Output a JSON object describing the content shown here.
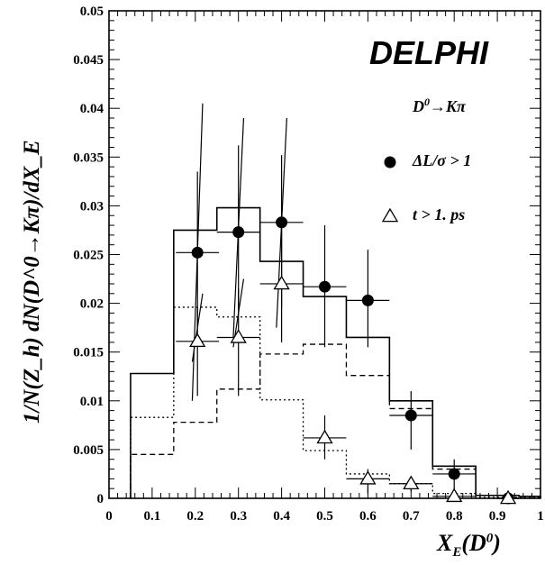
{
  "chart_data": {
    "type": "histogram",
    "xlim": [
      0,
      1
    ],
    "ylim": [
      0,
      0.05
    ],
    "x_ticks": [
      "0",
      "0.1",
      "0.2",
      "0.3",
      "0.4",
      "0.5",
      "0.6",
      "0.7",
      "0.8",
      "0.9",
      "1"
    ],
    "y_ticks": [
      "0",
      "0.005",
      "0.01",
      "0.015",
      "0.02",
      "0.025",
      "0.03",
      "0.035",
      "0.04",
      "0.045",
      "0.05"
    ],
    "ylabel": "1/N(Z_h) dN(D^0→Kπ)/dX_E",
    "xlabel": "X_E(D^0)",
    "bin_edges": [
      0.05,
      0.15,
      0.25,
      0.35,
      0.45,
      0.55,
      0.65,
      0.75,
      0.85,
      0.95,
      1.0
    ],
    "histograms": [
      {
        "style": "solid",
        "values": [
          0.0128,
          0.0275,
          0.0298,
          0.0243,
          0.0207,
          0.0165,
          0.01,
          0.0033,
          0.0003,
          0.0002
        ]
      },
      {
        "style": "dashed",
        "values": [
          0.0045,
          0.0078,
          0.0112,
          0.0148,
          0.0158,
          0.0126,
          0.0092,
          0.003,
          0.0003,
          0.0002
        ]
      },
      {
        "style": "dotted",
        "values": [
          0.0083,
          0.0196,
          0.0186,
          0.0101,
          0.0049,
          0.0025,
          0.0015,
          0.0005,
          0.0001,
          0.0001
        ]
      }
    ],
    "series": [
      {
        "name": "ΔL/σ > 1",
        "marker": "filled-circle",
        "points": [
          {
            "x": 0.205,
            "y": 0.0252,
            "xerr": 0.05,
            "ylow": 0.0175,
            "yhigh": 0.0335,
            "slant": [
              0.01,
              0.0405
            ]
          },
          {
            "x": 0.3,
            "y": 0.0273,
            "xerr": 0.05,
            "ylow": 0.0195,
            "yhigh": 0.0362,
            "slant": [
              0.0165,
              0.039
            ]
          },
          {
            "x": 0.4,
            "y": 0.0283,
            "xerr": 0.05,
            "ylow": 0.0195,
            "yhigh": 0.0352,
            "slant": [
              0.0175,
              0.039
            ]
          },
          {
            "x": 0.5,
            "y": 0.0217,
            "xerr": 0.05,
            "ylow": 0.0155,
            "yhigh": 0.028
          },
          {
            "x": 0.6,
            "y": 0.0203,
            "xerr": 0.05,
            "ylow": 0.0155,
            "yhigh": 0.0255
          },
          {
            "x": 0.7,
            "y": 0.0085,
            "xerr": 0.05,
            "ylow": 0.005,
            "yhigh": 0.011
          },
          {
            "x": 0.8,
            "y": 0.0025,
            "xerr": 0.05,
            "ylow": 0.0005,
            "yhigh": 0.004
          },
          {
            "x": 0.925,
            "y": 0.0,
            "xerr": 0.025,
            "ylow": 0.0,
            "yhigh": 0.0002
          }
        ]
      },
      {
        "name": "t > 1. ps",
        "marker": "open-triangle",
        "points": [
          {
            "x": 0.205,
            "y": 0.0161,
            "xerr": 0.05,
            "ylow": 0.0105,
            "yhigh": 0.0195,
            "slant": [
              0.014,
              0.021
            ]
          },
          {
            "x": 0.3,
            "y": 0.0165,
            "xerr": 0.05,
            "ylow": 0.0105,
            "yhigh": 0.0215,
            "slant": [
              0.0155,
              0.0225
            ]
          },
          {
            "x": 0.4,
            "y": 0.022,
            "xerr": 0.05,
            "ylow": 0.016,
            "yhigh": 0.028
          },
          {
            "x": 0.5,
            "y": 0.0062,
            "xerr": 0.05,
            "ylow": 0.004,
            "yhigh": 0.0085
          },
          {
            "x": 0.6,
            "y": 0.002,
            "xerr": 0.05,
            "ylow": 0.0005,
            "yhigh": 0.003
          },
          {
            "x": 0.7,
            "y": 0.0015,
            "xerr": 0.05,
            "ylow": 0.0007,
            "yhigh": 0.0022
          },
          {
            "x": 0.8,
            "y": 0.0002,
            "xerr": 0.05,
            "ylow": 0.0,
            "yhigh": 0.0006
          },
          {
            "x": 0.925,
            "y": 0.0,
            "xerr": 0.025,
            "ylow": 0.0,
            "yhigh": 0.0002
          }
        ]
      }
    ]
  },
  "annotations": {
    "brand": "DELPHI",
    "process_prefix": "D",
    "process_sup": "0",
    "process_suffix": "→Kπ",
    "legend_circle": "ΔL/σ > 1",
    "legend_triangle": "t > 1. ps"
  },
  "axis_titles": {
    "x_main": "X",
    "x_sub": "E",
    "x_paren_open": "(D",
    "x_sup": "0",
    "x_paren_close": ")",
    "y_text": "1/N(Z_h) dN(D^0→Kπ)/dX_E"
  }
}
